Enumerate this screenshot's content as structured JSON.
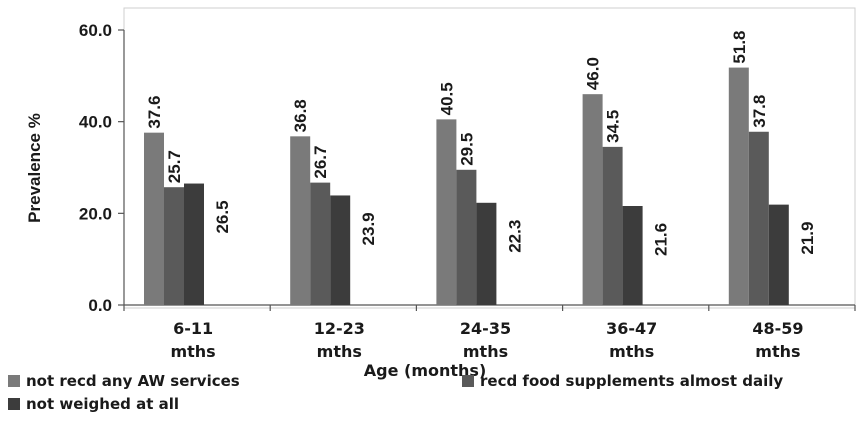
{
  "chart_data": {
    "type": "bar",
    "title": "",
    "xlabel": "Age (months)",
    "ylabel": "Prevalence %",
    "ylim": [
      0,
      60
    ],
    "y_ticks": [
      "0.0",
      "20.0",
      "40.0",
      "60.0"
    ],
    "grid": false,
    "legend_position": "bottom",
    "categories": [
      [
        "6-11",
        "mths"
      ],
      [
        "12-23",
        "mths"
      ],
      [
        "24-35",
        "mths"
      ],
      [
        "36-47",
        "mths"
      ],
      [
        "48-59",
        "mths"
      ]
    ],
    "series": [
      {
        "name": "not recd any AW services",
        "color": "#7a7a7a",
        "values": [
          37.6,
          36.8,
          40.5,
          46.0,
          51.8
        ]
      },
      {
        "name": "recd food supplements almost daily",
        "color": "#5a5a5a",
        "values": [
          25.7,
          26.7,
          29.5,
          34.5,
          37.8
        ]
      },
      {
        "name": "not weighed at all",
        "color": "#3c3c3c",
        "values": [
          26.5,
          23.9,
          22.3,
          21.6,
          21.9
        ]
      }
    ]
  }
}
